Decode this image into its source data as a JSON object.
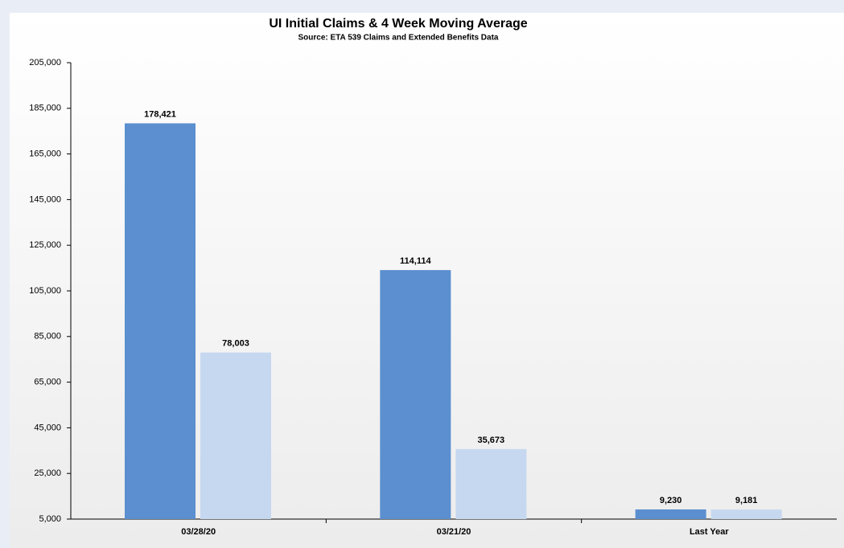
{
  "chart_data": {
    "type": "bar",
    "title": "UI Initial Claims &  4 Week Moving Average",
    "subtitle": "Source: ETA 539 Claims and Extended Benefits Data",
    "categories": [
      "03/28/20",
      "03/21/20",
      "Last Year"
    ],
    "series": [
      {
        "color": "#5b8fcf",
        "values": [
          178421,
          114114,
          9230
        ],
        "value_labels": [
          "178,421",
          "114,114",
          "9,230"
        ]
      },
      {
        "color": "#c6d8f0",
        "values": [
          78003,
          35673,
          9181
        ],
        "value_labels": [
          "78,003",
          "35,673",
          "9,181"
        ]
      }
    ],
    "ylim": [
      5000,
      205000
    ],
    "yticks": [
      {
        "value": 5000,
        "label": "5,000"
      },
      {
        "value": 25000,
        "label": "25,000"
      },
      {
        "value": 45000,
        "label": "45,000"
      },
      {
        "value": 65000,
        "label": "65,000"
      },
      {
        "value": 85000,
        "label": "85,000"
      },
      {
        "value": 105000,
        "label": "105,000"
      },
      {
        "value": 125000,
        "label": "125,000"
      },
      {
        "value": 145000,
        "label": "145,000"
      },
      {
        "value": 165000,
        "label": "165,000"
      },
      {
        "value": 185000,
        "label": "185,000"
      },
      {
        "value": 205000,
        "label": "205,000"
      }
    ],
    "grid": false
  }
}
